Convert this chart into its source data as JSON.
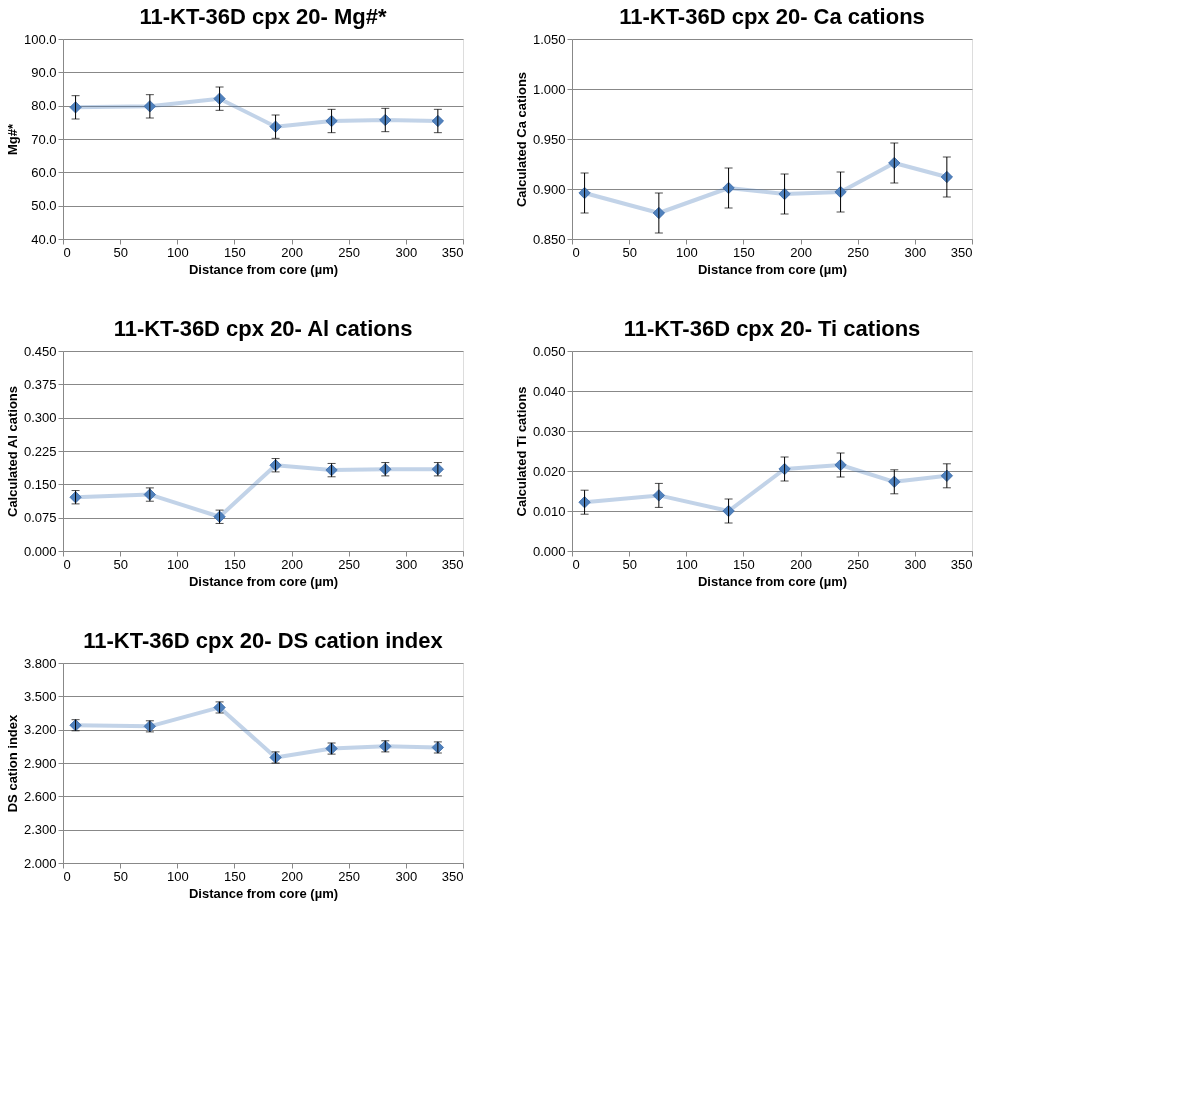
{
  "chart_data": [
    {
      "type": "line",
      "title": "11-KT-36D cpx 20- Mg#*",
      "xlabel": "Distance from core (µm)",
      "ylabel": "Mg#*",
      "x": [
        11,
        76,
        137,
        186,
        235,
        282,
        328
      ],
      "series": [
        {
          "color": "#4f81bd",
          "values": [
            79.5,
            79.8,
            82.1,
            73.7,
            75.4,
            75.7,
            75.4
          ],
          "errors": [
            3.5,
            3.5,
            3.5,
            3.5,
            3.5,
            3.5,
            3.5
          ]
        }
      ],
      "xlim": [
        0,
        350
      ],
      "xticks": [
        0,
        50,
        100,
        150,
        200,
        250,
        300,
        350
      ],
      "ylim": [
        40,
        100
      ],
      "yticks": [
        {
          "value": 40,
          "label": "40.0"
        },
        {
          "value": 50,
          "label": "50.0"
        },
        {
          "value": 60,
          "label": "60.0"
        },
        {
          "value": 70,
          "label": "70.0"
        },
        {
          "value": 80,
          "label": "80.0"
        },
        {
          "value": 90,
          "label": "90.0"
        },
        {
          "value": 100,
          "label": "100.0"
        }
      ],
      "grid": "y",
      "marker": "diamond",
      "legend": false
    },
    {
      "type": "line",
      "title": "11-KT-36D cpx 20- Ca cations",
      "xlabel": "Distance from core (µm)",
      "ylabel": "Calculated Ca cations",
      "x": [
        11,
        76,
        137,
        186,
        235,
        282,
        328
      ],
      "series": [
        {
          "color": "#4f81bd",
          "values": [
            0.896,
            0.876,
            0.901,
            0.895,
            0.897,
            0.926,
            0.912
          ],
          "errors": [
            0.02,
            0.02,
            0.02,
            0.02,
            0.02,
            0.02,
            0.02
          ]
        }
      ],
      "xlim": [
        0,
        350
      ],
      "xticks": [
        0,
        50,
        100,
        150,
        200,
        250,
        300,
        350
      ],
      "ylim": [
        0.85,
        1.05
      ],
      "yticks": [
        {
          "value": 0.85,
          "label": "0.850"
        },
        {
          "value": 0.9,
          "label": "0.900"
        },
        {
          "value": 0.95,
          "label": "0.950"
        },
        {
          "value": 1.0,
          "label": "1.000"
        },
        {
          "value": 1.05,
          "label": "1.050"
        }
      ],
      "grid": "y",
      "marker": "diamond",
      "legend": false
    },
    {
      "type": "line",
      "title": "11-KT-36D cpx 20- Al cations",
      "xlabel": "Distance from core (µm)",
      "ylabel": "Calculated Al cations",
      "x": [
        11,
        76,
        137,
        186,
        235,
        282,
        328
      ],
      "series": [
        {
          "color": "#4f81bd",
          "values": [
            0.121,
            0.127,
            0.077,
            0.193,
            0.182,
            0.184,
            0.184
          ],
          "errors": [
            0.015,
            0.015,
            0.015,
            0.015,
            0.015,
            0.015,
            0.015
          ]
        }
      ],
      "xlim": [
        0,
        350
      ],
      "xticks": [
        0,
        50,
        100,
        150,
        200,
        250,
        300,
        350
      ],
      "ylim": [
        0,
        0.45
      ],
      "yticks": [
        {
          "value": 0,
          "label": "0.000"
        },
        {
          "value": 0.075,
          "label": "0.075"
        },
        {
          "value": 0.15,
          "label": "0.150"
        },
        {
          "value": 0.225,
          "label": "0.225"
        },
        {
          "value": 0.3,
          "label": "0.300"
        },
        {
          "value": 0.375,
          "label": "0.375"
        },
        {
          "value": 0.45,
          "label": "0.450"
        }
      ],
      "grid": "y",
      "marker": "diamond",
      "legend": false
    },
    {
      "type": "line",
      "title": "11-KT-36D cpx 20- Ti cations",
      "xlabel": "Distance from core (µm)",
      "ylabel": "Calculated Ti cations",
      "x": [
        11,
        76,
        137,
        186,
        235,
        282,
        328
      ],
      "series": [
        {
          "color": "#4f81bd",
          "values": [
            0.0122,
            0.0139,
            0.01,
            0.0205,
            0.0215,
            0.0173,
            0.0188
          ],
          "errors": [
            0.003,
            0.003,
            0.003,
            0.003,
            0.003,
            0.003,
            0.003
          ]
        }
      ],
      "xlim": [
        0,
        350
      ],
      "xticks": [
        0,
        50,
        100,
        150,
        200,
        250,
        300,
        350
      ],
      "ylim": [
        0,
        0.05
      ],
      "yticks": [
        {
          "value": 0,
          "label": "0.000"
        },
        {
          "value": 0.01,
          "label": "0.010"
        },
        {
          "value": 0.02,
          "label": "0.020"
        },
        {
          "value": 0.03,
          "label": "0.030"
        },
        {
          "value": 0.04,
          "label": "0.040"
        },
        {
          "value": 0.05,
          "label": "0.050"
        }
      ],
      "grid": "y",
      "marker": "diamond",
      "legend": false
    },
    {
      "type": "line",
      "title": "11-KT-36D cpx 20- DS cation index",
      "xlabel": "Distance from core (µm)",
      "ylabel": "DS cation index",
      "x": [
        11,
        76,
        137,
        186,
        235,
        282,
        328
      ],
      "series": [
        {
          "color": "#4f81bd",
          "values": [
            3.24,
            3.23,
            3.4,
            2.95,
            3.03,
            3.05,
            3.04
          ],
          "errors": [
            0.05,
            0.05,
            0.05,
            0.05,
            0.05,
            0.05,
            0.05
          ]
        }
      ],
      "xlim": [
        0,
        350
      ],
      "xticks": [
        0,
        50,
        100,
        150,
        200,
        250,
        300,
        350
      ],
      "ylim": [
        2.0,
        3.8
      ],
      "yticks": [
        {
          "value": 2.0,
          "label": "2.000"
        },
        {
          "value": 2.3,
          "label": "2.300"
        },
        {
          "value": 2.6,
          "label": "2.600"
        },
        {
          "value": 2.9,
          "label": "2.900"
        },
        {
          "value": 3.2,
          "label": "3.200"
        },
        {
          "value": 3.5,
          "label": "3.500"
        },
        {
          "value": 3.8,
          "label": "3.800"
        }
      ],
      "grid": "y",
      "marker": "diamond",
      "legend": false
    }
  ]
}
